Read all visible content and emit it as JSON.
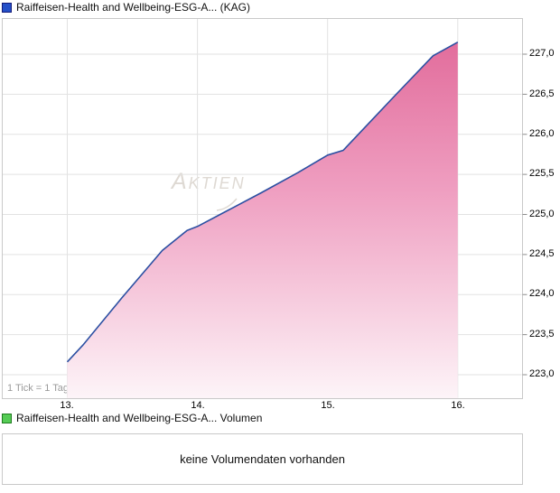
{
  "price_panel": {
    "legend_label": "Raiffeisen-Health and Wellbeing-ESG-A... (KAG)",
    "tick_note": "1 Tick = 1 Tag",
    "watermark": "Aktien",
    "y_tick_labels": [
      "227,0",
      "226,5",
      "226,0",
      "225,5",
      "225,0",
      "224,5",
      "224,0",
      "223,5",
      "223,0"
    ],
    "x_tick_labels": [
      "13.",
      "14.",
      "15.",
      "16."
    ]
  },
  "volume_panel": {
    "legend_label": "Raiffeisen-Health and Wellbeing-ESG-A... Volumen",
    "message": "keine Volumendaten vorhanden"
  },
  "colors": {
    "price_line": "#2b4fa2",
    "area_top": "#e26d9c",
    "area_mid": "#ef9fc1",
    "area_bottom": "#fdf4f8",
    "price_swatch_fill": "#2450c8",
    "price_swatch_border": "#131a78",
    "volume_swatch_fill": "#55cc55",
    "volume_swatch_border": "#1e7a1e",
    "grid": "#e2e2e2",
    "frame": "#c9c9c9",
    "axis_tick": "#8c8c8c"
  },
  "chart_data": {
    "type": "area",
    "title": "Raiffeisen-Health and Wellbeing-ESG-A... (KAG)",
    "x_days": [
      13,
      14,
      15,
      16
    ],
    "x_labels": [
      "13.",
      "14.",
      "15.",
      "16."
    ],
    "series": [
      {
        "name": "Raiffeisen-Health and Wellbeing-ESG-A... (KAG)",
        "values": [
          223.16,
          224.85,
          225.74,
          227.15
        ]
      }
    ],
    "curve": [
      [
        13.0,
        223.16
      ],
      [
        13.12,
        223.37
      ],
      [
        13.42,
        223.96
      ],
      [
        13.73,
        224.55
      ],
      [
        13.92,
        224.8
      ],
      [
        14.0,
        224.85
      ],
      [
        14.49,
        225.27
      ],
      [
        14.77,
        225.52
      ],
      [
        15.0,
        225.74
      ],
      [
        15.12,
        225.8
      ],
      [
        15.51,
        226.47
      ],
      [
        15.81,
        226.98
      ],
      [
        16.0,
        227.15
      ]
    ],
    "y_grid": [
      227.0,
      226.5,
      226.0,
      225.5,
      225.0,
      224.5,
      224.0,
      223.5,
      223.0
    ],
    "ylim": [
      222.71,
      227.45
    ],
    "ylabel_side": "right",
    "grid_on": true,
    "legend_position": "top-left",
    "unit_note": "1 Tick = 1 Tag",
    "volume": {
      "available": false,
      "message": "keine Volumendaten vorhanden"
    }
  }
}
